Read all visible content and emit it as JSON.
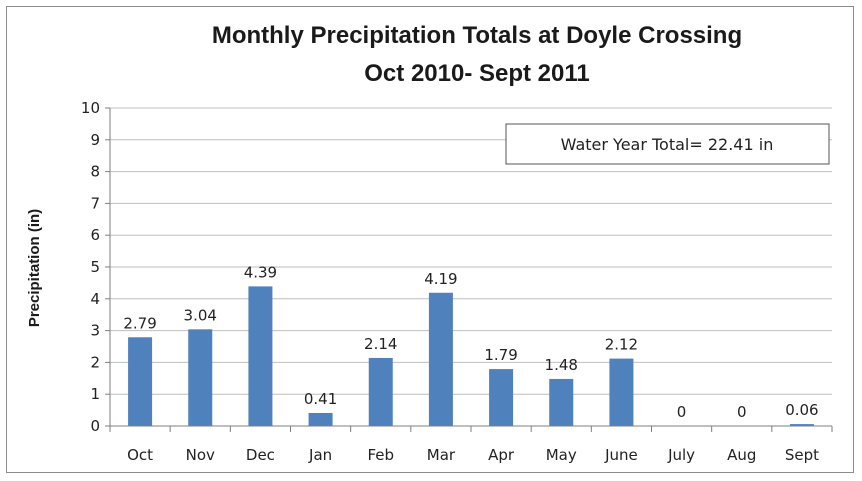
{
  "chart_data": {
    "type": "bar",
    "title": "Monthly Precipitation Totals at Doyle Crossing",
    "subtitle": "Oct 2010- Sept 2011",
    "xlabel": "",
    "ylabel": "Precipitation (in)",
    "ylim": [
      0,
      10
    ],
    "yticks": [
      0,
      1,
      2,
      3,
      4,
      5,
      6,
      7,
      8,
      9,
      10
    ],
    "grid": true,
    "categories": [
      "Oct",
      "Nov",
      "Dec",
      "Jan",
      "Feb",
      "Mar",
      "Apr",
      "May",
      "June",
      "July",
      "Aug",
      "Sept"
    ],
    "values": [
      2.79,
      3.04,
      4.39,
      0.41,
      2.14,
      4.19,
      1.79,
      1.48,
      2.12,
      0,
      0,
      0.06
    ],
    "data_labels": [
      "2.79",
      "3.04",
      "4.39",
      "0.41",
      "2.14",
      "4.19",
      "1.79",
      "1.48",
      "2.12",
      "0",
      "0",
      "0.06"
    ],
    "annotation": "Water Year Total= 22.41 in",
    "bar_color": "#4f81bd",
    "grid_color": "#bfbfbf"
  }
}
